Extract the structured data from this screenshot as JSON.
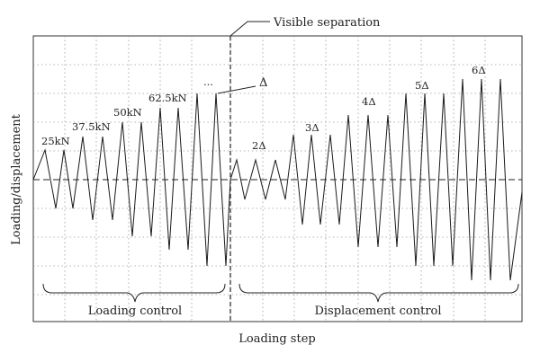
{
  "labels": {
    "separation": "Visible separation",
    "y_axis": "Loading/displacement",
    "x_axis": "Loading step",
    "loading_control": "Loading control",
    "displacement_control": "Displacement control",
    "ellipsis": "...",
    "delta": "Δ"
  },
  "loading_levels": [
    "25kN",
    "37.5kN",
    "50kN",
    "62.5kN"
  ],
  "displacement_levels": [
    "2Δ",
    "3Δ",
    "4Δ",
    "5Δ",
    "6Δ"
  ],
  "chart_data": {
    "type": "line",
    "xlabel": "Loading step",
    "ylabel": "Loading/displacement",
    "grid": true,
    "phases": [
      {
        "name": "Loading control",
        "levels": [
          "25kN",
          "37.5kN",
          "50kN",
          "62.5kN"
        ]
      },
      {
        "name": "Displacement control",
        "levels": [
          "Δ",
          "2Δ",
          "3Δ",
          "4Δ",
          "5Δ",
          "6Δ"
        ]
      }
    ]
  }
}
